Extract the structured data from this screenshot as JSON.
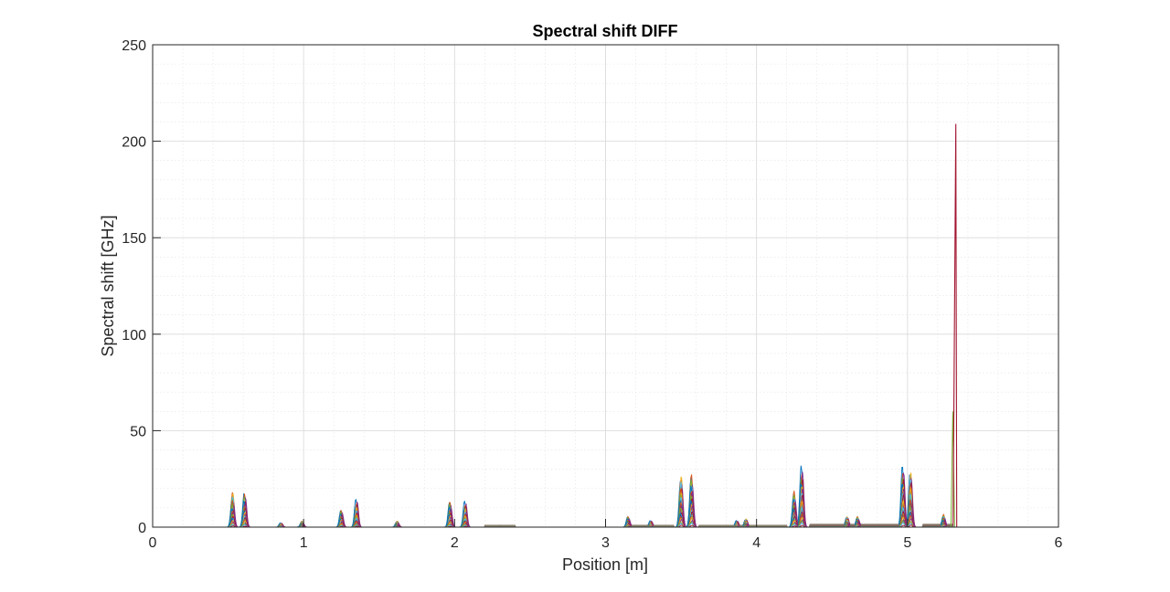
{
  "chart_data": {
    "type": "line",
    "title": "Spectral shift DIFF",
    "xlabel": "Position [m]",
    "ylabel": "Spectral shift [GHz]",
    "xlim": [
      0,
      6
    ],
    "ylim": [
      0,
      250
    ],
    "xticks": [
      "0",
      "1",
      "2",
      "3",
      "4",
      "5",
      "6"
    ],
    "yticks": [
      "0",
      "50",
      "100",
      "150",
      "200",
      "250"
    ],
    "grid": true,
    "minor_grid": true,
    "legend": "none",
    "x_end": 5.33,
    "colors": [
      "#0072BD",
      "#D95319",
      "#EDB120",
      "#7E2F8E",
      "#77AC30",
      "#4DBEEE",
      "#A2142F"
    ],
    "peaks": [
      {
        "x": 0.53,
        "y": 17
      },
      {
        "x": 0.61,
        "y": 16
      },
      {
        "x": 0.85,
        "y": 2
      },
      {
        "x": 0.99,
        "y": 3
      },
      {
        "x": 1.25,
        "y": 8
      },
      {
        "x": 1.35,
        "y": 13
      },
      {
        "x": 1.62,
        "y": 3
      },
      {
        "x": 1.97,
        "y": 12
      },
      {
        "x": 2.07,
        "y": 12
      },
      {
        "x": 2.3,
        "y": 1
      },
      {
        "x": 3.15,
        "y": 5
      },
      {
        "x": 3.3,
        "y": 3
      },
      {
        "x": 3.5,
        "y": 25
      },
      {
        "x": 3.57,
        "y": 25
      },
      {
        "x": 3.87,
        "y": 3
      },
      {
        "x": 3.93,
        "y": 4
      },
      {
        "x": 4.25,
        "y": 17
      },
      {
        "x": 4.3,
        "y": 28
      },
      {
        "x": 4.6,
        "y": 5
      },
      {
        "x": 4.67,
        "y": 5
      },
      {
        "x": 4.97,
        "y": 28
      },
      {
        "x": 5.02,
        "y": 27
      },
      {
        "x": 5.24,
        "y": 6
      },
      {
        "x": 5.3,
        "y": 60
      },
      {
        "x": 5.32,
        "y": 209
      }
    ],
    "plateaus": [
      {
        "from": 2.2,
        "to": 2.4,
        "y": 1
      },
      {
        "from": 3.15,
        "to": 3.45,
        "y": 1
      },
      {
        "from": 3.62,
        "to": 4.2,
        "y": 1
      },
      {
        "from": 4.35,
        "to": 4.95,
        "y": 1.5
      },
      {
        "from": 5.1,
        "to": 5.3,
        "y": 1.5
      }
    ]
  }
}
